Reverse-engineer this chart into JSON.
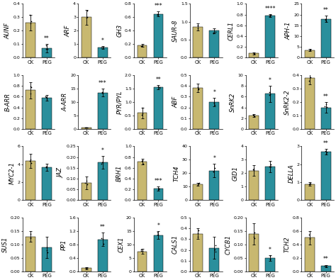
{
  "subplots": [
    {
      "title": "AUNF",
      "ck_val": 0.26,
      "peg_val": 0.07,
      "ck_err": 0.06,
      "peg_err": 0.03,
      "ylim": [
        0,
        0.4
      ],
      "yticks": [
        0.0,
        0.1,
        0.2,
        0.3,
        0.4
      ],
      "sig": "**",
      "sig_on": "peg"
    },
    {
      "title": "ARF",
      "ck_val": 3.0,
      "peg_val": 0.75,
      "ck_err": 0.55,
      "peg_err": 0.12,
      "ylim": [
        0,
        4
      ],
      "yticks": [
        0,
        1,
        2,
        3,
        4
      ],
      "sig": "*",
      "sig_on": "peg"
    },
    {
      "title": "GH3",
      "ck_val": 0.18,
      "peg_val": 0.65,
      "ck_err": 0.02,
      "peg_err": 0.04,
      "ylim": [
        0,
        0.8
      ],
      "yticks": [
        0.0,
        0.2,
        0.4,
        0.6,
        0.8
      ],
      "sig": "***",
      "sig_on": "peg"
    },
    {
      "title": "SAUR-8",
      "ck_val": 0.85,
      "peg_val": 0.75,
      "ck_err": 0.1,
      "peg_err": 0.07,
      "ylim": [
        0.0,
        1.5
      ],
      "yticks": [
        0.0,
        0.5,
        1.0,
        1.5
      ],
      "sig": "",
      "sig_on": "peg"
    },
    {
      "title": "CERL1",
      "ck_val": 0.08,
      "peg_val": 0.78,
      "ck_err": 0.02,
      "peg_err": 0.03,
      "ylim": [
        0,
        1.0
      ],
      "yticks": [
        0.0,
        0.2,
        0.4,
        0.6,
        0.8,
        1.0
      ],
      "sig": "****",
      "sig_on": "peg"
    },
    {
      "title": "APH-1",
      "ck_val": 3.5,
      "peg_val": 18.0,
      "ck_err": 0.5,
      "peg_err": 1.5,
      "ylim": [
        0,
        25
      ],
      "yticks": [
        0,
        5,
        10,
        15,
        20,
        25
      ],
      "sig": "**",
      "sig_on": "peg"
    },
    {
      "title": "B-ARR",
      "ck_val": 0.72,
      "peg_val": 0.58,
      "ck_err": 0.15,
      "peg_err": 0.05,
      "ylim": [
        0,
        1.0
      ],
      "yticks": [
        0.0,
        0.2,
        0.4,
        0.6,
        0.8,
        1.0
      ],
      "sig": "",
      "sig_on": "peg"
    },
    {
      "title": "A-ARR",
      "ck_val": 0.5,
      "peg_val": 13.5,
      "ck_err": 0.08,
      "peg_err": 1.5,
      "ylim": [
        0,
        20
      ],
      "yticks": [
        0,
        5,
        10,
        15,
        20
      ],
      "sig": "***",
      "sig_on": "peg"
    },
    {
      "title": "PYR/PYL",
      "ck_val": 0.6,
      "peg_val": 1.55,
      "ck_err": 0.2,
      "peg_err": 0.08,
      "ylim": [
        0,
        2
      ],
      "yticks": [
        0,
        0.5,
        1.0,
        1.5,
        2.0
      ],
      "sig": "**",
      "sig_on": "peg"
    },
    {
      "title": "ABF",
      "ck_val": 0.38,
      "peg_val": 0.25,
      "ck_err": 0.04,
      "peg_err": 0.04,
      "ylim": [
        0.0,
        0.5
      ],
      "yticks": [
        0.0,
        0.1,
        0.2,
        0.3,
        0.4,
        0.5
      ],
      "sig": "*",
      "sig_on": "peg"
    },
    {
      "title": "SnRK2",
      "ck_val": 2.5,
      "peg_val": 6.5,
      "ck_err": 0.3,
      "peg_err": 1.5,
      "ylim": [
        0,
        10
      ],
      "yticks": [
        0,
        2,
        4,
        6,
        8,
        10
      ],
      "sig": "*",
      "sig_on": "peg"
    },
    {
      "title": "SnRK2-2",
      "ck_val": 0.38,
      "peg_val": 0.16,
      "ck_err": 0.05,
      "peg_err": 0.04,
      "ylim": [
        0.0,
        0.4
      ],
      "yticks": [
        0.0,
        0.1,
        0.2,
        0.3,
        0.4
      ],
      "sig": "**",
      "sig_on": "peg"
    },
    {
      "title": "MYC2-1",
      "ck_val": 4.4,
      "peg_val": 3.7,
      "ck_err": 0.8,
      "peg_err": 0.4,
      "ylim": [
        0,
        6
      ],
      "yticks": [
        0,
        2,
        4,
        6
      ],
      "sig": "",
      "sig_on": "peg"
    },
    {
      "title": "JAZ",
      "ck_val": 0.08,
      "peg_val": 0.175,
      "ck_err": 0.03,
      "peg_err": 0.03,
      "ylim": [
        0.0,
        0.25
      ],
      "yticks": [
        0.0,
        0.05,
        0.1,
        0.15,
        0.2,
        0.25
      ],
      "sig": "*",
      "sig_on": "peg"
    },
    {
      "title": "BRH1",
      "ck_val": 0.72,
      "peg_val": 0.22,
      "ck_err": 0.05,
      "peg_err": 0.04,
      "ylim": [
        0.0,
        1.0
      ],
      "yticks": [
        0.0,
        0.2,
        0.4,
        0.6,
        0.8,
        1.0
      ],
      "sig": "***",
      "sig_on": "peg"
    },
    {
      "title": "TCH4",
      "ck_val": 12.0,
      "peg_val": 22.0,
      "ck_err": 1.0,
      "peg_err": 5.0,
      "ylim": [
        0,
        40
      ],
      "yticks": [
        0,
        10,
        20,
        30,
        40
      ],
      "sig": "*",
      "sig_on": "peg"
    },
    {
      "title": "GID1",
      "ck_val": 2.2,
      "peg_val": 2.5,
      "ck_err": 0.4,
      "peg_err": 0.4,
      "ylim": [
        0,
        4
      ],
      "yticks": [
        0,
        1,
        2,
        3,
        4
      ],
      "sig": "",
      "sig_on": "peg"
    },
    {
      "title": "DELLA",
      "ck_val": 0.9,
      "peg_val": 2.7,
      "ck_err": 0.1,
      "peg_err": 0.15,
      "ylim": [
        0,
        3
      ],
      "yticks": [
        0,
        1,
        2,
        3
      ],
      "sig": "**",
      "sig_on": "peg"
    },
    {
      "title": "SUS1",
      "ck_val": 0.13,
      "peg_val": 0.09,
      "ck_err": 0.02,
      "peg_err": 0.04,
      "ylim": [
        0.0,
        0.2
      ],
      "yticks": [
        0.0,
        0.05,
        0.1,
        0.15,
        0.2
      ],
      "sig": "",
      "sig_on": "peg"
    },
    {
      "title": "PP1",
      "ck_val": 0.1,
      "peg_val": 0.95,
      "ck_err": 0.03,
      "peg_err": 0.2,
      "ylim": [
        0.0,
        1.6
      ],
      "yticks": [
        0.0,
        0.4,
        0.8,
        1.2,
        1.6
      ],
      "sig": "**",
      "sig_on": "peg"
    },
    {
      "title": "CEX1",
      "ck_val": 7.5,
      "peg_val": 13.5,
      "ck_err": 1.0,
      "peg_err": 1.5,
      "ylim": [
        0,
        20
      ],
      "yticks": [
        0,
        5,
        10,
        15,
        20
      ],
      "sig": "*",
      "sig_on": "peg"
    },
    {
      "title": "CALS1",
      "ck_val": 0.35,
      "peg_val": 0.22,
      "ck_err": 0.05,
      "peg_err": 0.1,
      "ylim": [
        0.0,
        0.5
      ],
      "yticks": [
        0.0,
        0.1,
        0.2,
        0.3,
        0.4,
        0.5
      ],
      "sig": "",
      "sig_on": "peg"
    },
    {
      "title": "CYCB1",
      "ck_val": 0.14,
      "peg_val": 0.05,
      "ck_err": 0.04,
      "peg_err": 0.01,
      "ylim": [
        0.0,
        0.2
      ],
      "yticks": [
        0.0,
        0.05,
        0.1,
        0.15,
        0.2
      ],
      "sig": "*",
      "sig_on": "peg"
    },
    {
      "title": "TCH2",
      "ck_val": 0.5,
      "peg_val": 0.08,
      "ck_err": 0.1,
      "peg_err": 0.02,
      "ylim": [
        0.0,
        0.8
      ],
      "yticks": [
        0.0,
        0.2,
        0.4,
        0.6,
        0.8
      ],
      "sig": "**",
      "sig_on": "peg"
    }
  ],
  "ck_color": "#c8b870",
  "peg_color": "#2a8f9c",
  "nrows": 4,
  "ncols": 6,
  "title_fontsize": 6.0,
  "tick_fontsize": 4.5,
  "label_fontsize": 5.0,
  "sig_fontsize": 5.5
}
